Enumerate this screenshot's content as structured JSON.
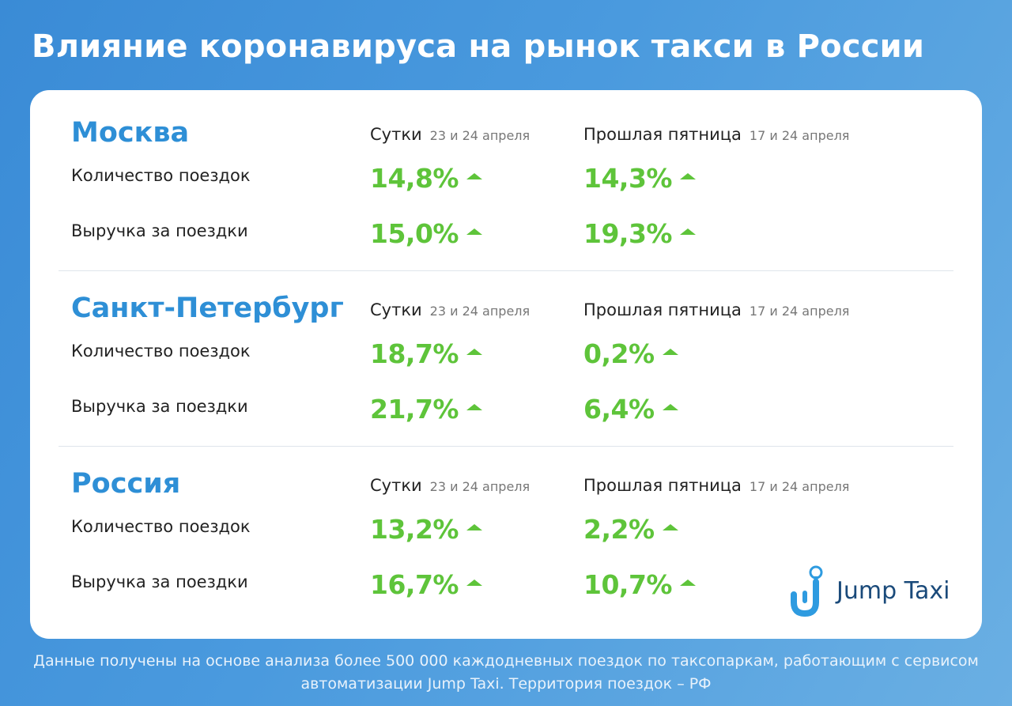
{
  "title": "Влияние коронавируса на рынок такси в России",
  "columns": {
    "col1": {
      "label": "Сутки",
      "sub": "23 и 24 апреля"
    },
    "col2": {
      "label": "Прошлая пятница",
      "sub": "17 и 24 апреля"
    }
  },
  "row_labels": {
    "trips": "Количество поездок",
    "revenue": "Выручка за поездки"
  },
  "sections": {
    "moscow": {
      "city": "Москва",
      "trips": [
        "14,8%",
        "14,3%"
      ],
      "revenue": [
        "15,0%",
        "19,3%"
      ]
    },
    "spb": {
      "city": "Санкт-Петербург",
      "trips": [
        "18,7%",
        "0,2%"
      ],
      "revenue": [
        "21,7%",
        "6,4%"
      ]
    },
    "russia": {
      "city": "Россия",
      "trips": [
        "13,2%",
        "2,2%"
      ],
      "revenue": [
        "16,7%",
        "10,7%"
      ]
    }
  },
  "icons": {
    "trend": "arrow-up-icon",
    "logo": "jump-taxi-logo-icon"
  },
  "colors": {
    "accent": "#2e8fd6",
    "positive": "#5ec43a",
    "brand": "#1a4a7a"
  },
  "brand": "Jump Taxi",
  "footer": {
    "line1": "Данные получены на основе анализа более 500 000 каждодневных поездок по таксопаркам, работающим с сервисом",
    "line2": "автоматизации Jump Taxi. Территория поездок – РФ"
  }
}
